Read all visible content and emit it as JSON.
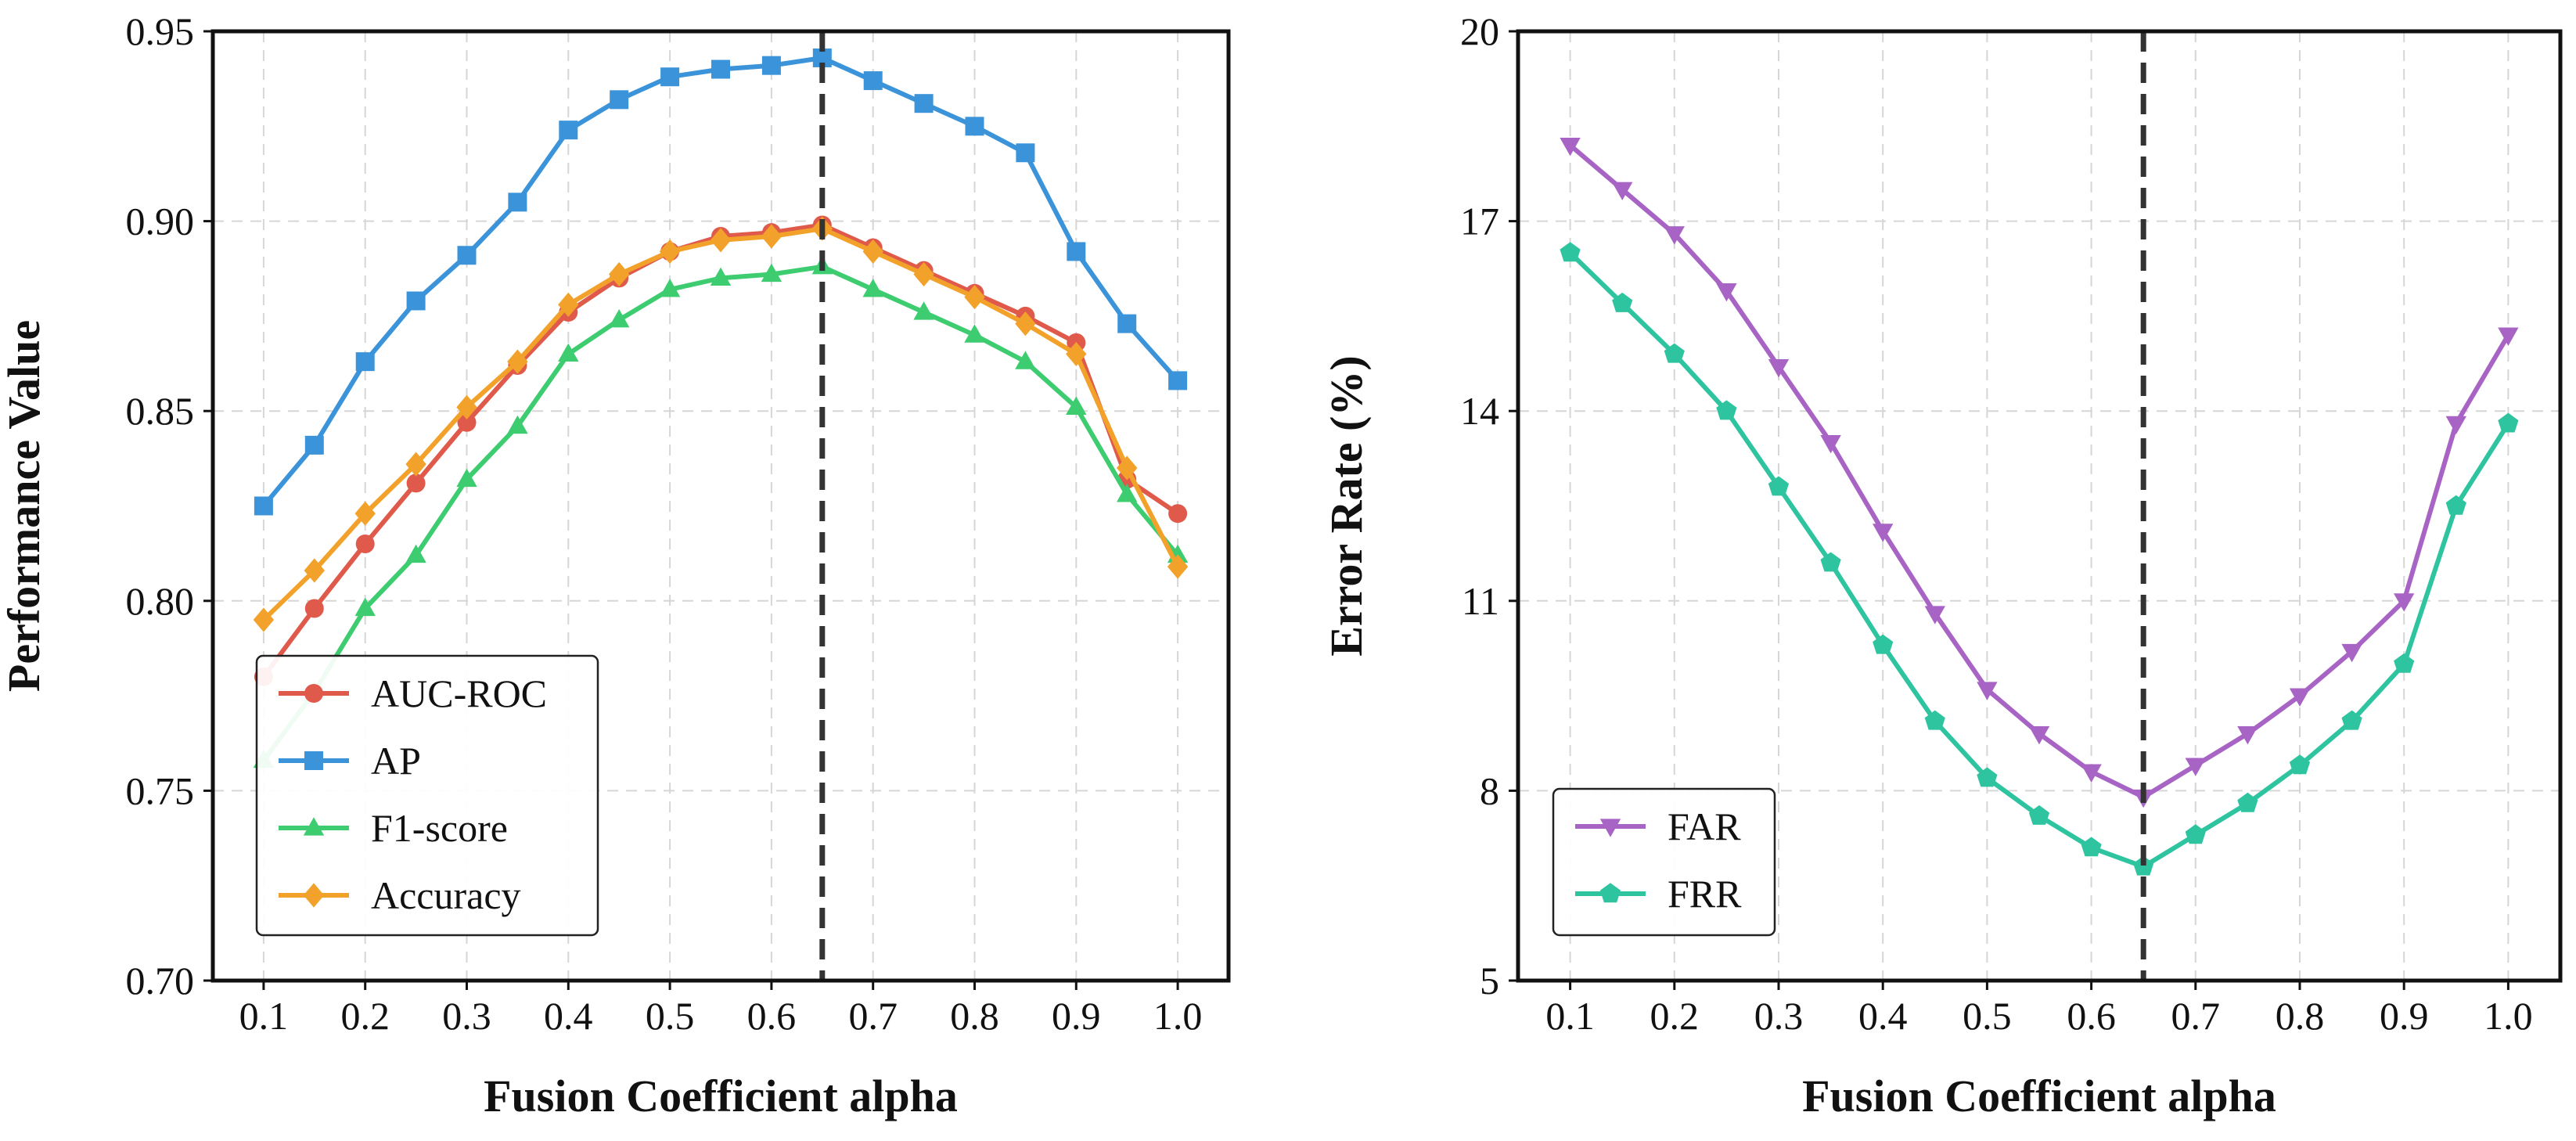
{
  "chart_data": [
    {
      "type": "line",
      "xlabel": "Fusion Coefficient alpha",
      "ylabel": "Performance Value",
      "xlim": [
        0.05,
        1.05
      ],
      "ylim": [
        0.7,
        0.95
      ],
      "xticks": [
        "0.1",
        "0.2",
        "0.3",
        "0.4",
        "0.5",
        "0.6",
        "0.7",
        "0.8",
        "0.9",
        "1.0"
      ],
      "yticks": [
        "0.70",
        "0.75",
        "0.80",
        "0.85",
        "0.90",
        "0.95"
      ],
      "grid": true,
      "legend_position": "lower-left",
      "vline": {
        "x": 0.65,
        "style": "dashed",
        "color": "#333333"
      },
      "x": [
        0.1,
        0.15,
        0.2,
        0.25,
        0.3,
        0.35,
        0.4,
        0.45,
        0.5,
        0.55,
        0.6,
        0.65,
        0.7,
        0.75,
        0.8,
        0.85,
        0.9,
        0.95,
        1.0
      ],
      "series": [
        {
          "name": "AUC-ROC",
          "color": "#e05a4b",
          "marker": "circle",
          "values": [
            0.78,
            0.798,
            0.815,
            0.831,
            0.847,
            0.862,
            0.876,
            0.885,
            0.892,
            0.896,
            0.897,
            0.899,
            0.893,
            0.887,
            0.881,
            0.875,
            0.868,
            0.832,
            0.823
          ]
        },
        {
          "name": "AP",
          "color": "#3b93d9",
          "marker": "square",
          "values": [
            0.825,
            0.841,
            0.863,
            0.879,
            0.891,
            0.905,
            0.924,
            0.932,
            0.938,
            0.94,
            0.941,
            0.943,
            0.937,
            0.931,
            0.925,
            0.918,
            0.892,
            0.873,
            0.858
          ]
        },
        {
          "name": "F1-score",
          "color": "#3dcc70",
          "marker": "triangle-up",
          "values": [
            0.758,
            0.776,
            0.798,
            0.812,
            0.832,
            0.846,
            0.865,
            0.874,
            0.882,
            0.885,
            0.886,
            0.888,
            0.882,
            0.876,
            0.87,
            0.863,
            0.851,
            0.828,
            0.812
          ]
        },
        {
          "name": "Accuracy",
          "color": "#f2a22a",
          "marker": "diamond",
          "values": [
            0.795,
            0.808,
            0.823,
            0.836,
            0.851,
            0.863,
            0.878,
            0.886,
            0.892,
            0.895,
            0.896,
            0.898,
            0.892,
            0.886,
            0.88,
            0.873,
            0.865,
            0.835,
            0.809
          ]
        }
      ]
    },
    {
      "type": "line",
      "xlabel": "Fusion Coefficient alpha",
      "ylabel": "Error Rate (%)",
      "xlim": [
        0.05,
        1.05
      ],
      "ylim": [
        5,
        20
      ],
      "xticks": [
        "0.1",
        "0.2",
        "0.3",
        "0.4",
        "0.5",
        "0.6",
        "0.7",
        "0.8",
        "0.9",
        "1.0"
      ],
      "yticks": [
        "5",
        "8",
        "11",
        "14",
        "17",
        "20"
      ],
      "grid": true,
      "legend_position": "lower-left",
      "vline": {
        "x": 0.65,
        "style": "dashed",
        "color": "#333333"
      },
      "x": [
        0.1,
        0.15,
        0.2,
        0.25,
        0.3,
        0.35,
        0.4,
        0.45,
        0.5,
        0.55,
        0.6,
        0.65,
        0.7,
        0.75,
        0.8,
        0.85,
        0.9,
        0.95,
        1.0
      ],
      "series": [
        {
          "name": "FAR",
          "color": "#a864c4",
          "marker": "triangle-down",
          "values": [
            18.2,
            17.5,
            16.8,
            15.9,
            14.7,
            13.5,
            12.1,
            10.8,
            9.6,
            8.9,
            8.3,
            7.9,
            8.4,
            8.9,
            9.5,
            10.2,
            11.0,
            13.8,
            15.2
          ]
        },
        {
          "name": "FRR",
          "color": "#2ec4a0",
          "marker": "pentagon",
          "values": [
            16.5,
            15.7,
            14.9,
            14.0,
            12.8,
            11.6,
            10.3,
            9.1,
            8.2,
            7.6,
            7.1,
            6.8,
            7.3,
            7.8,
            8.4,
            9.1,
            10.0,
            12.5,
            13.8
          ]
        }
      ]
    }
  ]
}
